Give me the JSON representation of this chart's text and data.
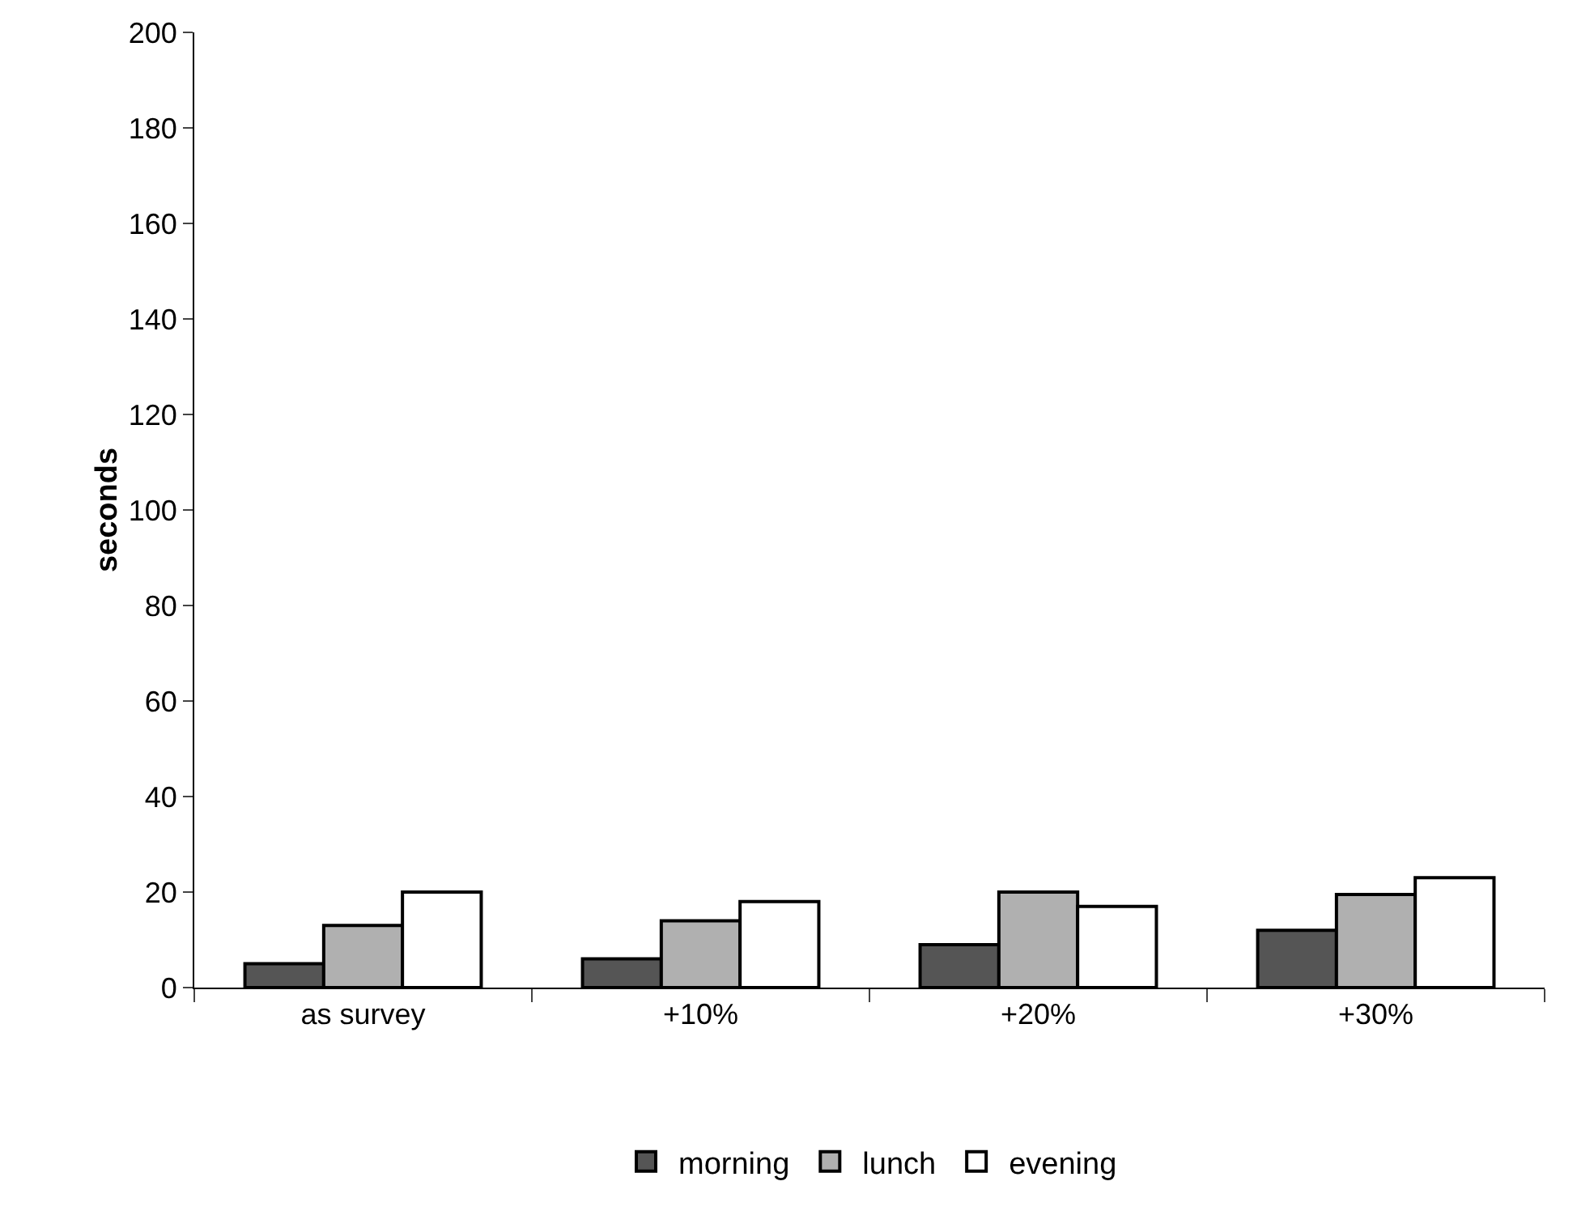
{
  "chart_data": {
    "type": "bar",
    "ylabel": "seconds",
    "categories": [
      "as survey",
      "+10%",
      "+20%",
      "+30%"
    ],
    "series": [
      {
        "name": "morning",
        "color": "#555555",
        "values": [
          5,
          6,
          9,
          12
        ]
      },
      {
        "name": "lunch",
        "color": "#b0b0b0",
        "values": [
          13,
          14,
          20,
          19.5
        ]
      },
      {
        "name": "evening",
        "color": "#ffffff",
        "values": [
          20,
          18,
          17,
          23
        ]
      }
    ],
    "ylim": [
      0,
      200
    ],
    "yticks": [
      0,
      20,
      40,
      60,
      80,
      100,
      120,
      140,
      160,
      180,
      200
    ],
    "grid": false,
    "legend": "bottom"
  }
}
